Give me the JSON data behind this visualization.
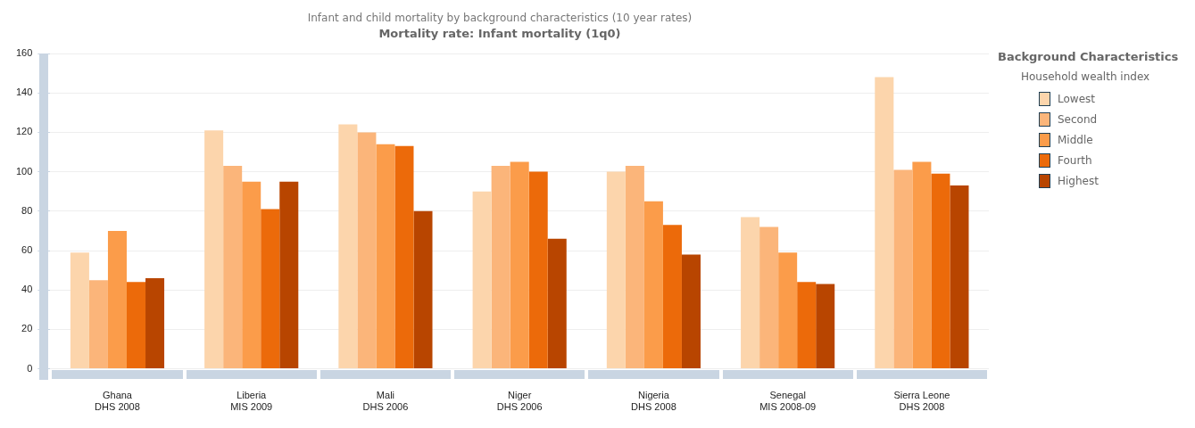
{
  "chart_data": {
    "type": "bar",
    "title": "Infant and child mortality by background characteristics (10 year rates)",
    "subtitle": "Mortality rate: Infant mortality (1q0)",
    "legend_title": "Background Characteristics",
    "annotations": [
      "Household wealth index"
    ],
    "categories": [
      "Ghana\nDHS 2008",
      "Liberia\nMIS 2009",
      "Mali\nDHS 2006",
      "Niger\nDHS 2006",
      "Nigeria\nDHS 2008",
      "Senegal\nMIS 2008-09",
      "Sierra Leone\nDHS 2008"
    ],
    "series": [
      {
        "name": "Lowest",
        "color": "#fcd5ac",
        "values": [
          59,
          121,
          124,
          90,
          100,
          77,
          148
        ]
      },
      {
        "name": "Second",
        "color": "#fbb57a",
        "values": [
          45,
          103,
          120,
          103,
          103,
          72,
          101
        ]
      },
      {
        "name": "Middle",
        "color": "#fb9c4a",
        "values": [
          70,
          95,
          114,
          105,
          85,
          59,
          105
        ]
      },
      {
        "name": "Fourth",
        "color": "#ec6a0a",
        "values": [
          44,
          81,
          113,
          100,
          73,
          44,
          99
        ]
      },
      {
        "name": "Highest",
        "color": "#b84500",
        "values": [
          46,
          95,
          80,
          66,
          58,
          43,
          93
        ]
      }
    ],
    "ylim": [
      0,
      160
    ],
    "yticks": [
      0,
      20,
      40,
      60,
      80,
      100,
      120,
      140,
      160
    ],
    "grid": "y",
    "legend": "top right"
  }
}
